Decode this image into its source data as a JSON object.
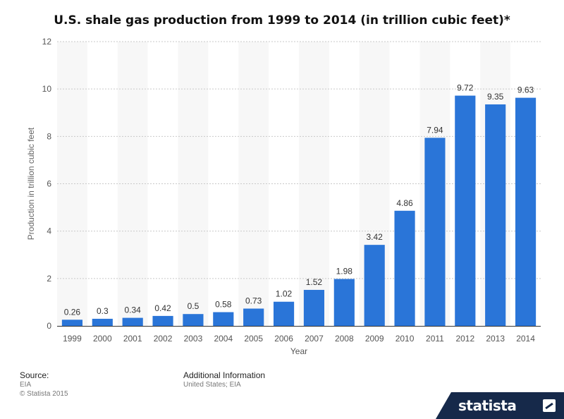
{
  "chart_data": {
    "type": "bar",
    "title": "U.S. shale gas production from 1999 to 2014 (in trillion cubic feet)*",
    "xlabel": "Year",
    "ylabel": "Production in trillion cubic feet",
    "categories": [
      "1999",
      "2000",
      "2001",
      "2002",
      "2003",
      "2004",
      "2005",
      "2006",
      "2007",
      "2008",
      "2009",
      "2010",
      "2011",
      "2012",
      "2013",
      "2014"
    ],
    "values": [
      0.26,
      0.3,
      0.34,
      0.42,
      0.5,
      0.58,
      0.73,
      1.02,
      1.52,
      1.98,
      3.42,
      4.86,
      7.94,
      9.72,
      9.35,
      9.63
    ],
    "value_labels": [
      "0.26",
      "0.3",
      "0.34",
      "0.42",
      "0.5",
      "0.58",
      "0.73",
      "1.02",
      "1.52",
      "1.98",
      "3.42",
      "4.86",
      "7.94",
      "9.72",
      "9.35",
      "9.63"
    ],
    "ylim": [
      0,
      12
    ],
    "yticks": [
      "0",
      "2",
      "4",
      "6",
      "8",
      "10",
      "12"
    ],
    "bar_color": "#2a75d8",
    "grid": true
  },
  "footer": {
    "source_heading": "Source:",
    "source_value": "EIA",
    "copyright": "© Statista 2015",
    "additional_heading": "Additional Information",
    "additional_value": "United States; EIA"
  },
  "brand": {
    "name": "statista",
    "icon": "statista-logo-icon"
  }
}
